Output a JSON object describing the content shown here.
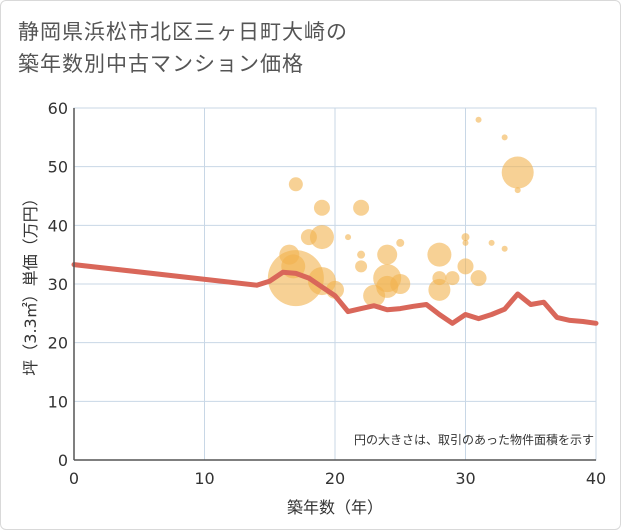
{
  "title_lines": [
    "静岡県浜松市北区三ヶ日町大崎の",
    "築年数別中古マンション価格"
  ],
  "chart_data": {
    "type": "scatter+line",
    "xlabel": "築年数（年）",
    "ylabel": "坪（3.3㎡）単価（万円）",
    "xlim": [
      0,
      40
    ],
    "ylim": [
      0,
      60
    ],
    "xticks": [
      0,
      10,
      20,
      30,
      40
    ],
    "yticks": [
      0,
      10,
      20,
      30,
      40,
      50,
      60
    ],
    "note": "円の大きさは、取引のあった物件面積を示す",
    "colors": {
      "bubble": "#f2b34f",
      "line": "#d9675a",
      "grid": "#c8d7e6",
      "axis": "#555555"
    },
    "bubbles": [
      {
        "x": 16.5,
        "y": 35,
        "s": 10
      },
      {
        "x": 16.8,
        "y": 33,
        "s": 12
      },
      {
        "x": 17,
        "y": 47,
        "s": 7
      },
      {
        "x": 17,
        "y": 31,
        "s": 28
      },
      {
        "x": 18,
        "y": 38,
        "s": 8
      },
      {
        "x": 19,
        "y": 43,
        "s": 8
      },
      {
        "x": 19,
        "y": 38,
        "s": 12
      },
      {
        "x": 19,
        "y": 30.5,
        "s": 14
      },
      {
        "x": 20,
        "y": 29,
        "s": 9
      },
      {
        "x": 21,
        "y": 38,
        "s": 3
      },
      {
        "x": 22,
        "y": 43,
        "s": 8
      },
      {
        "x": 22,
        "y": 35,
        "s": 4
      },
      {
        "x": 22,
        "y": 33,
        "s": 6
      },
      {
        "x": 23,
        "y": 28,
        "s": 11
      },
      {
        "x": 24,
        "y": 35,
        "s": 10
      },
      {
        "x": 24,
        "y": 31,
        "s": 14
      },
      {
        "x": 24,
        "y": 29.5,
        "s": 11
      },
      {
        "x": 25,
        "y": 37,
        "s": 4
      },
      {
        "x": 25,
        "y": 30,
        "s": 10
      },
      {
        "x": 28,
        "y": 35,
        "s": 12
      },
      {
        "x": 28,
        "y": 31,
        "s": 7
      },
      {
        "x": 28,
        "y": 29,
        "s": 11
      },
      {
        "x": 29,
        "y": 31,
        "s": 7
      },
      {
        "x": 30,
        "y": 38,
        "s": 4
      },
      {
        "x": 30,
        "y": 37,
        "s": 3
      },
      {
        "x": 30,
        "y": 33,
        "s": 8
      },
      {
        "x": 31,
        "y": 58,
        "s": 3
      },
      {
        "x": 31,
        "y": 31,
        "s": 8
      },
      {
        "x": 32,
        "y": 37,
        "s": 3
      },
      {
        "x": 33,
        "y": 55,
        "s": 3
      },
      {
        "x": 33,
        "y": 36,
        "s": 3
      },
      {
        "x": 34,
        "y": 49,
        "s": 16
      },
      {
        "x": 34,
        "y": 46,
        "s": 3
      }
    ],
    "line": {
      "x": [
        0,
        14,
        15,
        16,
        17,
        18,
        19,
        20,
        21,
        22,
        23,
        24,
        25,
        26,
        27,
        28,
        29,
        30,
        31,
        32,
        33,
        34,
        35,
        36,
        37,
        38,
        39,
        40
      ],
      "y": [
        33.3,
        29.8,
        30.5,
        32,
        31.8,
        31,
        29.5,
        28,
        25.3,
        25.8,
        26.3,
        25.6,
        25.8,
        26.2,
        26.5,
        24.8,
        23.3,
        24.8,
        24.1,
        24.8,
        25.7,
        28.3,
        26.5,
        26.9,
        24.3,
        23.8,
        23.6,
        23.3
      ]
    }
  }
}
